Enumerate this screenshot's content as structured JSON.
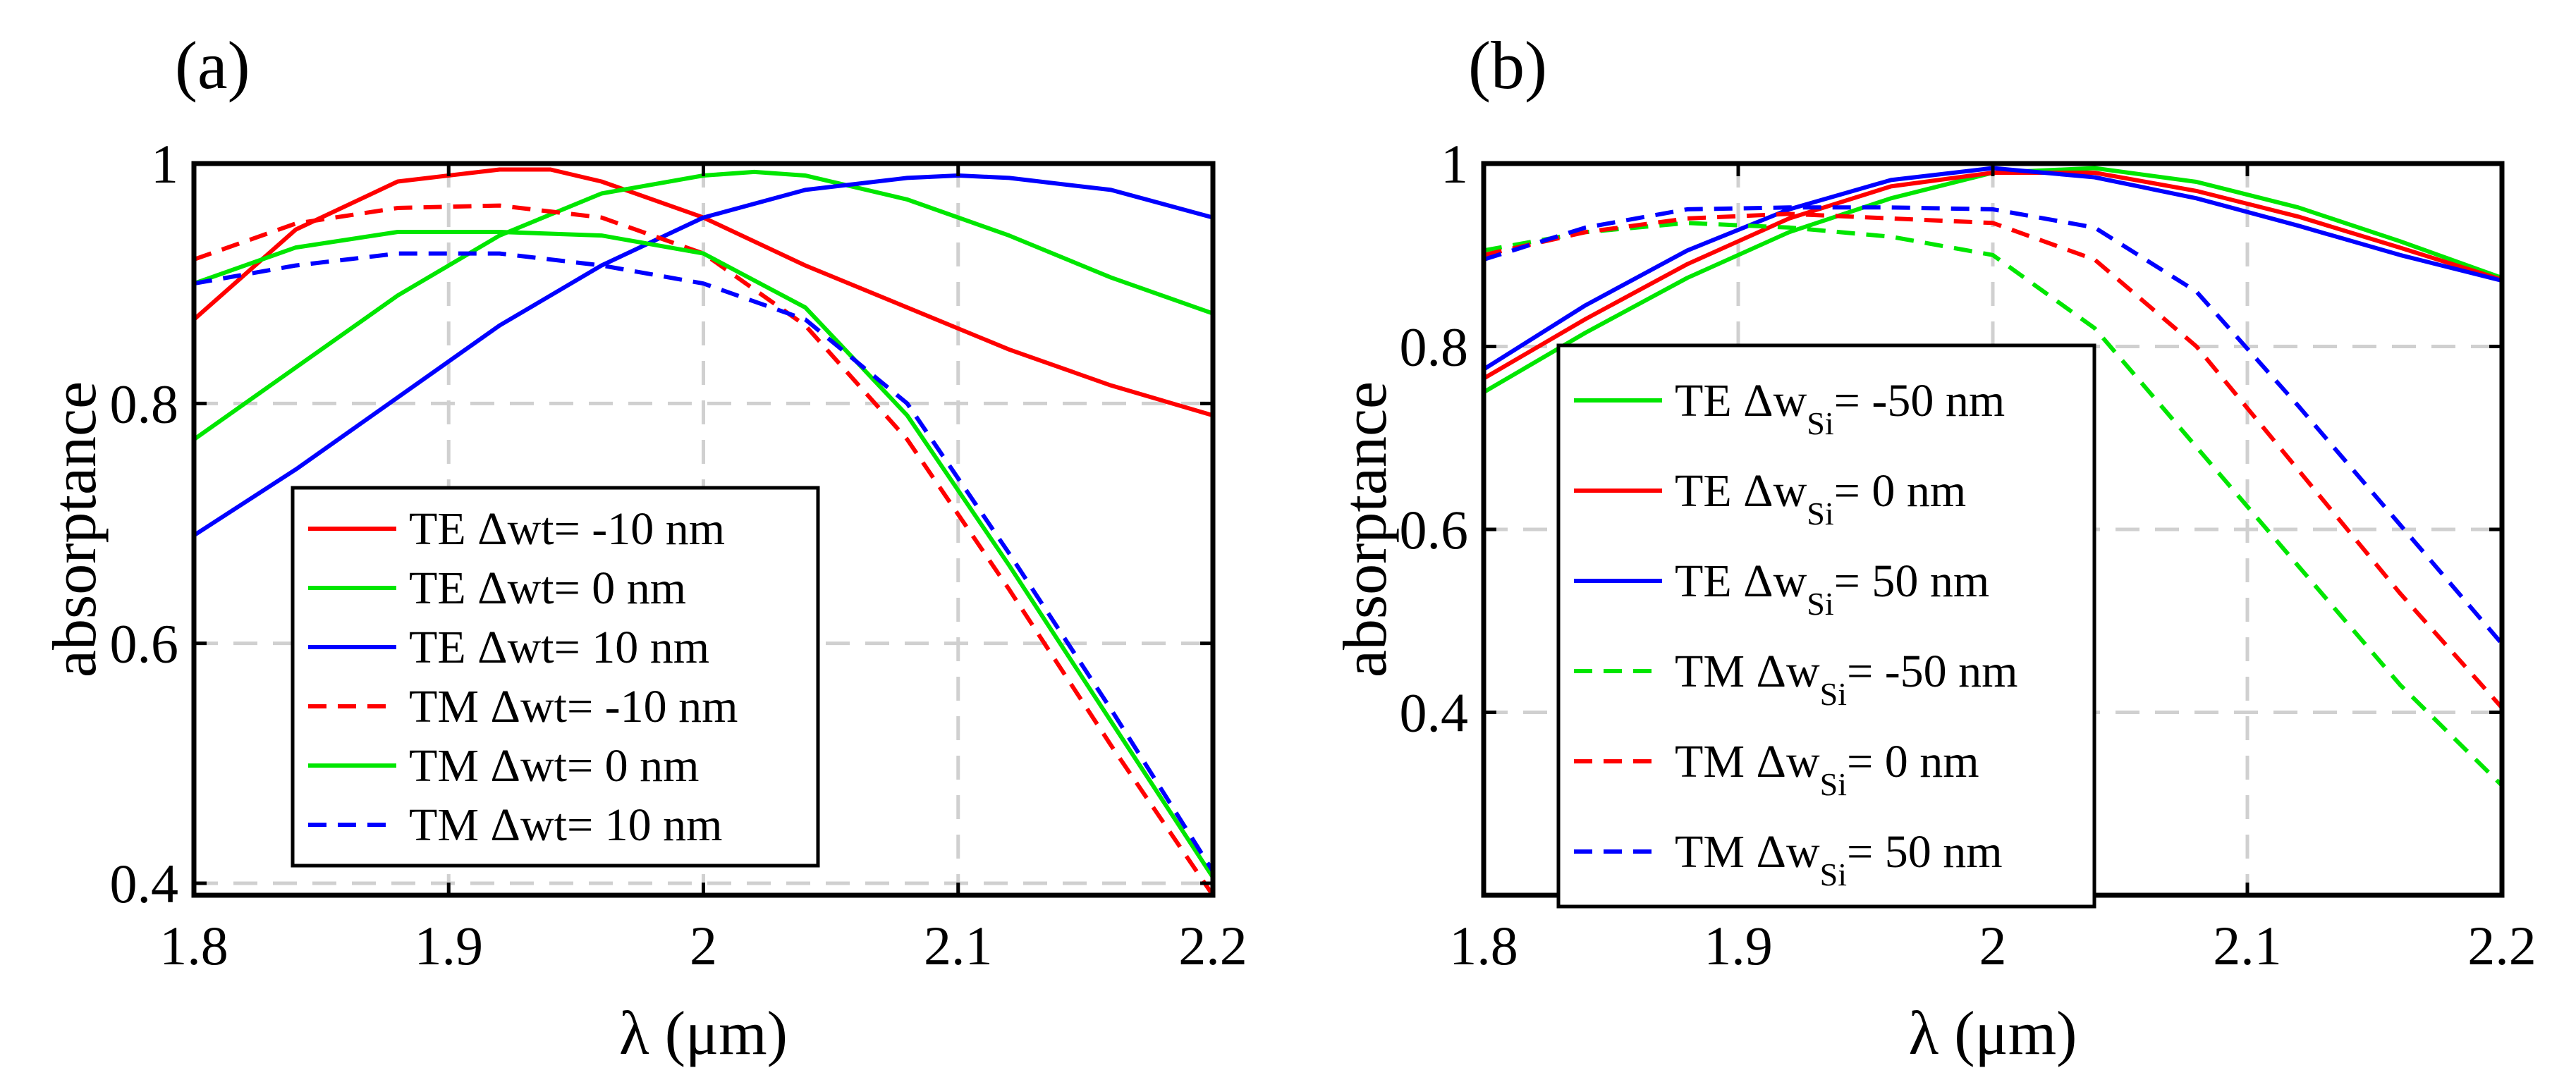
{
  "chart_data": [
    {
      "type": "line",
      "panel_label": "(a)",
      "xlabel": "λ (μm)",
      "ylabel": "absorptance",
      "xlim": [
        1.8,
        2.2
      ],
      "ylim": [
        0.39,
        1.0
      ],
      "xticks": [
        1.8,
        1.9,
        2.0,
        2.1,
        2.2
      ],
      "xtick_labels": [
        "1.8",
        "1.9",
        "2",
        "2.1",
        "2.2"
      ],
      "yticks": [
        0.4,
        0.6,
        0.8,
        1.0
      ],
      "ytick_labels": [
        "0.4",
        "0.6",
        "0.8",
        "1"
      ],
      "grid": true,
      "legend_position": "bottom-center",
      "series": [
        {
          "legend_parts": [
            "TE Δwt= -10 nm"
          ],
          "color": "#ff0000",
          "dash": "solid",
          "x": [
            1.8,
            1.84,
            1.88,
            1.92,
            1.94,
            1.96,
            2.0,
            2.04,
            2.08,
            2.12,
            2.16,
            2.2
          ],
          "y": [
            0.87,
            0.945,
            0.985,
            0.995,
            0.995,
            0.985,
            0.955,
            0.915,
            0.88,
            0.845,
            0.815,
            0.79
          ]
        },
        {
          "legend_parts": [
            "TE Δwt= 0 nm"
          ],
          "color": "#00e600",
          "dash": "solid",
          "x": [
            1.8,
            1.84,
            1.88,
            1.92,
            1.96,
            2.0,
            2.02,
            2.04,
            2.08,
            2.12,
            2.16,
            2.2
          ],
          "y": [
            0.77,
            0.83,
            0.89,
            0.94,
            0.975,
            0.99,
            0.993,
            0.99,
            0.97,
            0.94,
            0.905,
            0.875
          ]
        },
        {
          "legend_parts": [
            "TE Δwt= 10 nm"
          ],
          "color": "#0000ff",
          "dash": "solid",
          "x": [
            1.8,
            1.84,
            1.88,
            1.92,
            1.96,
            2.0,
            2.04,
            2.08,
            2.1,
            2.12,
            2.16,
            2.2
          ],
          "y": [
            0.69,
            0.745,
            0.805,
            0.865,
            0.915,
            0.955,
            0.978,
            0.988,
            0.99,
            0.988,
            0.978,
            0.955
          ]
        },
        {
          "legend_parts": [
            "TM Δwt= -10 nm"
          ],
          "color": "#ff0000",
          "dash": "dashed",
          "x": [
            1.8,
            1.84,
            1.88,
            1.92,
            1.96,
            2.0,
            2.04,
            2.08,
            2.12,
            2.16,
            2.2
          ],
          "y": [
            0.92,
            0.95,
            0.963,
            0.965,
            0.955,
            0.925,
            0.865,
            0.77,
            0.645,
            0.515,
            0.39
          ]
        },
        {
          "legend_parts": [
            "TM Δwt= 0 nm"
          ],
          "color": "#00e600",
          "dash": "solid",
          "x": [
            1.8,
            1.84,
            1.88,
            1.92,
            1.96,
            2.0,
            2.04,
            2.08,
            2.12,
            2.16,
            2.2
          ],
          "y": [
            0.9,
            0.93,
            0.943,
            0.943,
            0.94,
            0.925,
            0.88,
            0.79,
            0.665,
            0.535,
            0.405
          ]
        },
        {
          "legend_parts": [
            "TM Δwt= 10 nm"
          ],
          "color": "#0000ff",
          "dash": "dashed",
          "x": [
            1.8,
            1.84,
            1.88,
            1.92,
            1.96,
            2.0,
            2.04,
            2.08,
            2.12,
            2.16,
            2.2
          ],
          "y": [
            0.9,
            0.915,
            0.925,
            0.925,
            0.915,
            0.9,
            0.87,
            0.8,
            0.675,
            0.545,
            0.41
          ]
        }
      ]
    },
    {
      "type": "line",
      "panel_label": "(b)",
      "xlabel": "λ (μm)",
      "ylabel": "absorptance",
      "xlim": [
        1.8,
        2.2
      ],
      "ylim": [
        0.2,
        1.0
      ],
      "xticks": [
        1.8,
        1.9,
        2.0,
        2.1,
        2.2
      ],
      "xtick_labels": [
        "1.8",
        "1.9",
        "2",
        "2.1",
        "2.2"
      ],
      "yticks": [
        0.4,
        0.6,
        0.8,
        1.0
      ],
      "ytick_labels": [
        "0.4",
        "0.6",
        "0.8",
        "1"
      ],
      "grid": true,
      "legend_position": "left",
      "series": [
        {
          "legend_parts": [
            "TE Δw",
            "Si",
            "= -50 nm"
          ],
          "color": "#00e600",
          "dash": "solid",
          "x": [
            1.8,
            1.84,
            1.88,
            1.92,
            1.96,
            2.0,
            2.04,
            2.08,
            2.12,
            2.16,
            2.2
          ],
          "y": [
            0.75,
            0.815,
            0.875,
            0.925,
            0.962,
            0.99,
            0.995,
            0.98,
            0.952,
            0.915,
            0.875
          ]
        },
        {
          "legend_parts": [
            "TE Δw",
            "Si",
            "= 0 nm"
          ],
          "color": "#ff0000",
          "dash": "solid",
          "x": [
            1.8,
            1.84,
            1.88,
            1.92,
            1.96,
            2.0,
            2.04,
            2.08,
            2.12,
            2.16,
            2.2
          ],
          "y": [
            0.765,
            0.83,
            0.89,
            0.94,
            0.975,
            0.99,
            0.99,
            0.97,
            0.942,
            0.908,
            0.873
          ]
        },
        {
          "legend_parts": [
            "TE Δw",
            "Si",
            "= 50 nm"
          ],
          "color": "#0000ff",
          "dash": "solid",
          "x": [
            1.8,
            1.84,
            1.88,
            1.92,
            1.96,
            2.0,
            2.04,
            2.08,
            2.12,
            2.16,
            2.2
          ],
          "y": [
            0.775,
            0.845,
            0.905,
            0.95,
            0.982,
            0.995,
            0.985,
            0.962,
            0.932,
            0.9,
            0.872
          ]
        },
        {
          "legend_parts": [
            "TM Δw",
            "Si",
            "= -50 nm"
          ],
          "color": "#00e600",
          "dash": "dashed",
          "x": [
            1.8,
            1.84,
            1.88,
            1.92,
            1.96,
            2.0,
            2.04,
            2.08,
            2.12,
            2.16,
            2.2
          ],
          "y": [
            0.905,
            0.925,
            0.935,
            0.93,
            0.92,
            0.9,
            0.82,
            0.69,
            0.56,
            0.43,
            0.32
          ]
        },
        {
          "legend_parts": [
            "TM Δw",
            "Si",
            "= 0 nm"
          ],
          "color": "#ff0000",
          "dash": "dashed",
          "x": [
            1.8,
            1.84,
            1.88,
            1.92,
            1.96,
            2.0,
            2.04,
            2.08,
            2.12,
            2.16,
            2.2
          ],
          "y": [
            0.9,
            0.925,
            0.94,
            0.945,
            0.94,
            0.935,
            0.895,
            0.8,
            0.665,
            0.53,
            0.405
          ]
        },
        {
          "legend_parts": [
            "TM Δw",
            "Si",
            "= 50 nm"
          ],
          "color": "#0000ff",
          "dash": "dashed",
          "x": [
            1.8,
            1.84,
            1.88,
            1.92,
            1.96,
            2.0,
            2.04,
            2.08,
            2.12,
            2.16,
            2.2
          ],
          "y": [
            0.895,
            0.93,
            0.95,
            0.952,
            0.952,
            0.95,
            0.93,
            0.86,
            0.735,
            0.605,
            0.475
          ]
        }
      ]
    }
  ]
}
